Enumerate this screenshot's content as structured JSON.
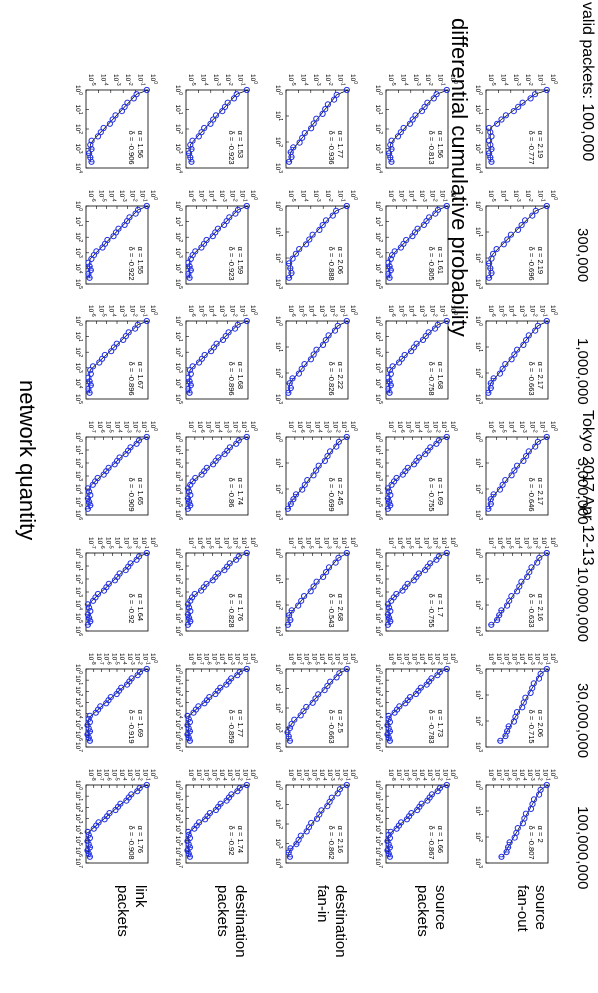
{
  "title": "differential cumulative probability",
  "subtitle": "Tokyo 2017 Apr 12-13",
  "xlabel": "network quantity",
  "valid_packets_prefix": "valid packets: 100,000",
  "columns": [
    "valid packets: 100,000",
    "300,000",
    "1,000,000",
    "3,000,000",
    "10,000,000",
    "30,000,000",
    "100,000,000"
  ],
  "rows": [
    "source fan-out",
    "source packets",
    "destination fan-in",
    "destination packets",
    "link packets"
  ],
  "colors": {
    "marker": "#1f2fe8",
    "fit": "#000000",
    "axes": "#000000"
  },
  "chart_data": {
    "type": "scatter",
    "scale": "log-log",
    "layout": "grid 5 rows x 7 columns, figure rotated 90 degrees clockwise",
    "y_range_label": "10^0 (top) down to 10^-n",
    "panels": [
      [
        {
          "alpha": "α = 2.19",
          "delta": "δ = -0.777",
          "xmax": 4,
          "ymin": -5
        },
        {
          "alpha": "α = 2.19",
          "delta": "δ = -0.696",
          "xmax": 3,
          "ymin": -5
        },
        {
          "alpha": "α = 2.17",
          "delta": "δ = -0.663",
          "xmax": 3,
          "ymin": -6
        },
        {
          "alpha": "α = 2.17",
          "delta": "δ = -0.646",
          "xmax": 3,
          "ymin": -6
        },
        {
          "alpha": "α = 2.16",
          "delta": "δ = -0.633",
          "xmax": 3,
          "ymin": -7
        },
        {
          "alpha": "α = 2.06",
          "delta": "δ = -0.715",
          "xmax": 3,
          "ymin": -8
        },
        {
          "alpha": "α = 2",
          "delta": "δ = -0.807",
          "xmax": 3,
          "ymin": -8
        }
      ],
      [
        {
          "alpha": "α = 1.56",
          "delta": "δ = -0.813",
          "xmax": 4,
          "ymin": -5
        },
        {
          "alpha": "α = 1.61",
          "delta": "δ = -0.805",
          "xmax": 5,
          "ymin": -6
        },
        {
          "alpha": "α = 1.68",
          "delta": "δ = -0.758",
          "xmax": 5,
          "ymin": -6
        },
        {
          "alpha": "α = 1.69",
          "delta": "δ = -0.755",
          "xmax": 6,
          "ymin": -7
        },
        {
          "alpha": "α = 1.7",
          "delta": "δ = -0.755",
          "xmax": 6,
          "ymin": -7
        },
        {
          "alpha": "α = 1.73",
          "delta": "δ = -0.783",
          "xmax": 7,
          "ymin": -8
        },
        {
          "alpha": "α = 1.66",
          "delta": "δ = -0.867",
          "xmax": 7,
          "ymin": -8
        }
      ],
      [
        {
          "alpha": "α = 1.77",
          "delta": "δ = -0.936",
          "xmax": 3,
          "ymin": -5
        },
        {
          "alpha": "α = 2.06",
          "delta": "δ = -0.888",
          "xmax": 3,
          "ymin": -5
        },
        {
          "alpha": "α = 2.22",
          "delta": "δ = -0.826",
          "xmax": 3,
          "ymin": -6
        },
        {
          "alpha": "α = 2.45",
          "delta": "δ = -0.699",
          "xmax": 3,
          "ymin": -7
        },
        {
          "alpha": "α = 2.68",
          "delta": "δ = -0.543",
          "xmax": 3,
          "ymin": -7
        },
        {
          "alpha": "α = 2.5",
          "delta": "δ = -0.663",
          "xmax": 4,
          "ymin": -8
        },
        {
          "alpha": "α = 2.16",
          "delta": "δ = -0.862",
          "xmax": 4,
          "ymin": -8
        }
      ],
      [
        {
          "alpha": "α = 1.53",
          "delta": "δ = -0.923",
          "xmax": 4,
          "ymin": -5
        },
        {
          "alpha": "α = 1.59",
          "delta": "δ = -0.923",
          "xmax": 5,
          "ymin": -6
        },
        {
          "alpha": "α = 1.68",
          "delta": "δ = -0.896",
          "xmax": 5,
          "ymin": -6
        },
        {
          "alpha": "α = 1.74",
          "delta": "δ = -0.86",
          "xmax": 6,
          "ymin": -7
        },
        {
          "alpha": "α = 1.76",
          "delta": "δ = -0.828",
          "xmax": 6,
          "ymin": -7
        },
        {
          "alpha": "α = 1.77",
          "delta": "δ = -0.859",
          "xmax": 7,
          "ymin": -8
        },
        {
          "alpha": "α = 1.74",
          "delta": "δ = -0.92",
          "xmax": 7,
          "ymin": -8
        }
      ],
      [
        {
          "alpha": "α = 1.56",
          "delta": "δ = -0.906",
          "xmax": 4,
          "ymin": -5
        },
        {
          "alpha": "α = 1.55",
          "delta": "δ = -0.922",
          "xmax": 5,
          "ymin": -6
        },
        {
          "alpha": "α = 1.67",
          "delta": "δ = -0.896",
          "xmax": 5,
          "ymin": -6
        },
        {
          "alpha": "α = 1.65",
          "delta": "δ = -0.909",
          "xmax": 6,
          "ymin": -7
        },
        {
          "alpha": "α = 1.64",
          "delta": "δ = -0.92",
          "xmax": 6,
          "ymin": -7
        },
        {
          "alpha": "α = 1.69",
          "delta": "δ = -0.919",
          "xmax": 7,
          "ymin": -8
        },
        {
          "alpha": "α = 1.76",
          "delta": "δ = -0.908",
          "xmax": 7,
          "ymin": -8
        }
      ]
    ]
  }
}
